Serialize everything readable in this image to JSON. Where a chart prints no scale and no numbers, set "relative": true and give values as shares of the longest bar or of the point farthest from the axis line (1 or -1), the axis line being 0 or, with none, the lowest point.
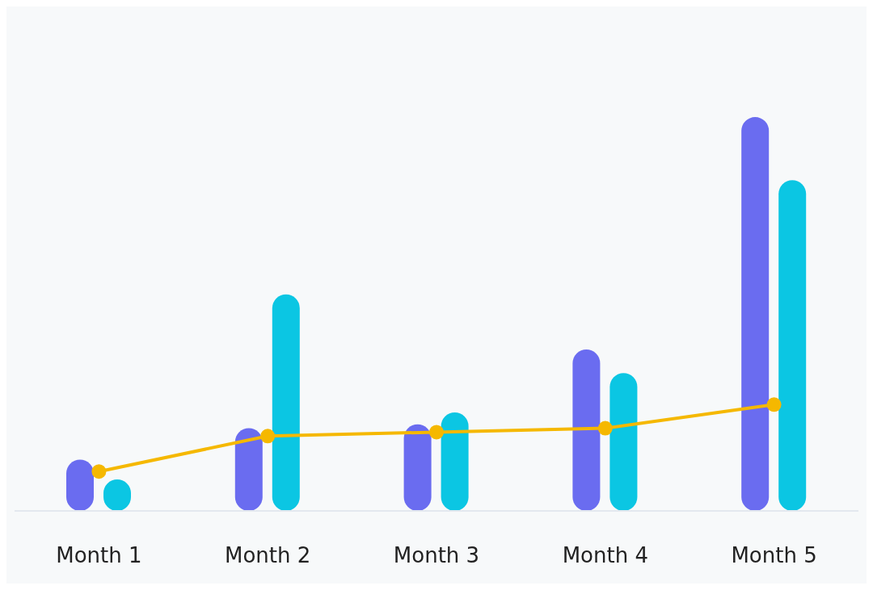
{
  "chart_data": {
    "type": "bar",
    "relative": true,
    "categories": [
      "Month 1",
      "Month 2",
      "Month 3",
      "Month 4",
      "Month 5"
    ],
    "series": [
      {
        "color": "#6a6cf0",
        "values": [
          0.13,
          0.21,
          0.22,
          0.41,
          1
        ]
      },
      {
        "color": "#0bc6e3",
        "values": [
          0.08,
          0.55,
          0.25,
          0.35,
          0.84
        ]
      },
      {
        "type": "line",
        "color": "#f5b800",
        "marker": "circle",
        "values": [
          0.1,
          0.19,
          0.2,
          0.21,
          0.27
        ]
      }
    ]
  }
}
